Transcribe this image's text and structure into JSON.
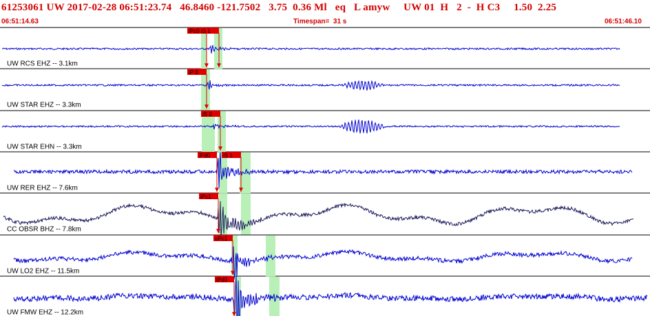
{
  "header": {
    "title": "61253061 UW 2017-02-28 06:51:23.74   46.8460 -121.7502   3.75  0.36 Ml   eq   L amyw     UW 01  H   2  -  H C3     1.50  2.25",
    "start_time": "06:51:14.63",
    "timespan": "Timespan=  31 s",
    "end_time": "06:51:46.10"
  },
  "colors": {
    "header_text": "#d40000",
    "trace_blue": "#0000d0",
    "trace_navy": "#1a1a5a",
    "pick_box": "#e00000",
    "window_green": "#b8f0b8",
    "separator": "#000000"
  },
  "panels": [
    {
      "label": "UW RCS EHZ -- 3.1km",
      "color": "blue",
      "picks": [
        {
          "text": "iPc0"
        },
        {
          "text": "iS 1"
        }
      ]
    },
    {
      "label": "UW STAR EHZ -- 3.3km",
      "color": "blue",
      "picks": [
        {
          "text": "iP 0"
        }
      ]
    },
    {
      "label": "UW STAR EHN -- 3.3km",
      "color": "blue",
      "picks": [
        {
          "text": "iS 0"
        }
      ]
    },
    {
      "label": "UW RER EHZ -- 7.6km",
      "color": "blue",
      "picks": [
        {
          "text": "iPd0"
        },
        {
          "text": "iS 1"
        }
      ]
    },
    {
      "label": "CC OBSR BHZ -- 7.8km",
      "color": "navy",
      "picks": [
        {
          "text": "iPc1"
        }
      ]
    },
    {
      "label": "UW LO2 EHZ -- 11.5km",
      "color": "blue",
      "picks": [
        {
          "text": "ePc1"
        }
      ]
    },
    {
      "label": "UW FMW EHZ -- 12.2km",
      "color": "blue",
      "picks": [
        {
          "text": "iPd0"
        }
      ]
    }
  ]
}
